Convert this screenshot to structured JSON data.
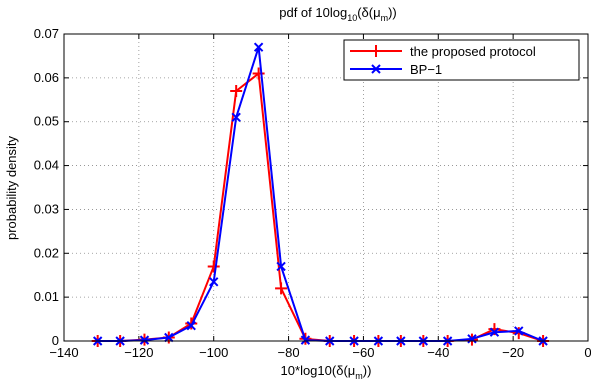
{
  "chart_data": {
    "type": "line",
    "title": {
      "main": "pdf of 10log",
      "sub1": "10",
      "mid": "(δ(μ",
      "sub2": "m",
      "end": "))"
    },
    "xlabel": {
      "main": "10*log10(δ(μ",
      "sub": "m",
      "end": "))"
    },
    "ylabel": "probability density",
    "xlim": [
      -140,
      0
    ],
    "ylim": [
      0,
      0.07
    ],
    "xticks": [
      -140,
      -120,
      -100,
      -80,
      -60,
      -40,
      -20,
      0
    ],
    "yticks": [
      0,
      0.01,
      0.02,
      0.03,
      0.04,
      0.05,
      0.06,
      0.07
    ],
    "xtick_labels": [
      "−140",
      "−120",
      "−100",
      "−80",
      "−60",
      "−40",
      "−20",
      "0"
    ],
    "ytick_labels": [
      "0",
      "0.01",
      "0.02",
      "0.03",
      "0.04",
      "0.05",
      "0.06",
      "0.07"
    ],
    "grid": true,
    "legend_position": "top-right",
    "series": [
      {
        "name": "the proposed protocol",
        "color": "#ff0000",
        "marker": "plus",
        "x": [
          -131,
          -125,
          -118.5,
          -112,
          -106,
          -100,
          -94,
          -88,
          -82,
          -75.5,
          -69,
          -62.5,
          -56,
          -50,
          -44,
          -37.5,
          -31,
          -25,
          -18.5,
          -12
        ],
        "y": [
          0,
          0,
          0.0003,
          0.0008,
          0.004,
          0.017,
          0.057,
          0.061,
          0.012,
          0.0005,
          0,
          0,
          0,
          0,
          0,
          0,
          0.0003,
          0.0027,
          0.0018,
          0
        ]
      },
      {
        "name": "BP−1",
        "color": "#0000ff",
        "marker": "x",
        "x": [
          -131,
          -125,
          -118.5,
          -112,
          -106,
          -100,
          -94,
          -88,
          -82,
          -75.5,
          -69,
          -62.5,
          -56,
          -50,
          -44,
          -37.5,
          -31,
          -25,
          -18.5,
          -12
        ],
        "y": [
          0,
          0,
          0.0002,
          0.0008,
          0.0035,
          0.0135,
          0.051,
          0.067,
          0.017,
          0.0002,
          0,
          0,
          0,
          0,
          0,
          0,
          0.0005,
          0.002,
          0.0023,
          0
        ]
      }
    ]
  }
}
